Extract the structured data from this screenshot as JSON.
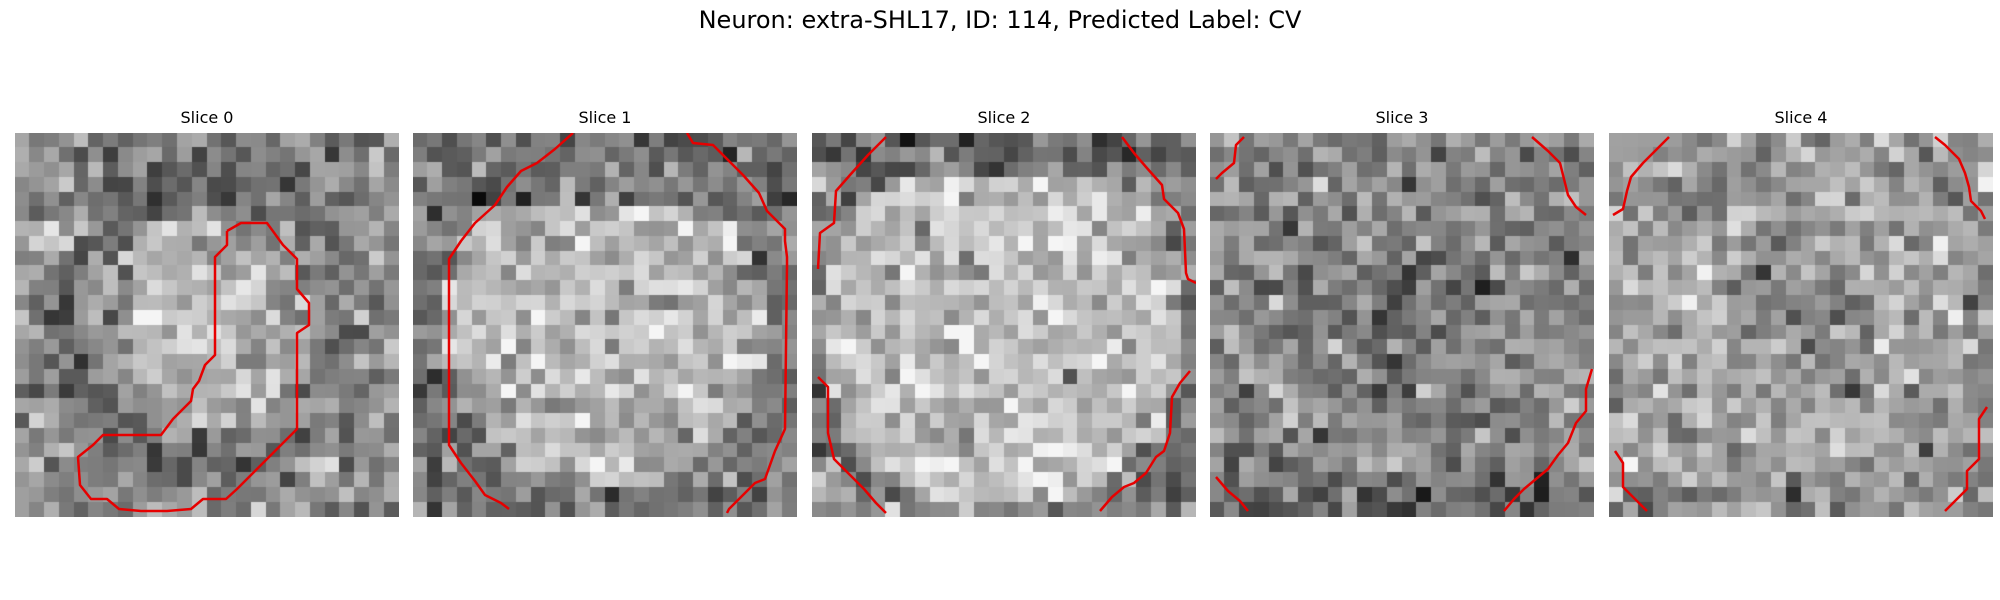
{
  "figure": {
    "title": "Neuron: extra-SHL17, ID: 114, Predicted Label: CV"
  },
  "slices": [
    {
      "title": "Slice 0",
      "pattern": "ring-center-bright"
    },
    {
      "title": "Slice 1",
      "pattern": "bright-disk"
    },
    {
      "title": "Slice 2",
      "pattern": "bright-disk-large"
    },
    {
      "title": "Slice 3",
      "pattern": "noisy-dark"
    },
    {
      "title": "Slice 4",
      "pattern": "noisy-ring"
    }
  ],
  "grid": {
    "cells": 26
  },
  "colors": {
    "contour": "#e60000",
    "background": "#ffffff"
  }
}
